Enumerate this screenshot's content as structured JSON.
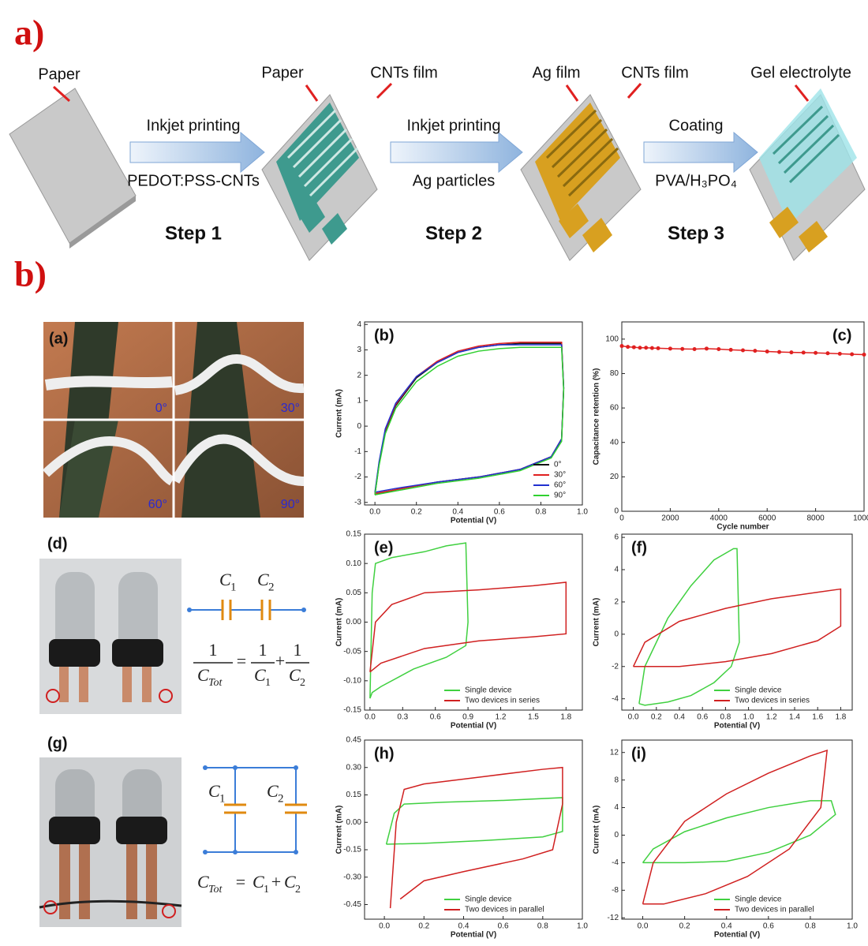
{
  "schematic": {
    "label": "a)",
    "paper_1": "Paper",
    "step1_top": "Inkjet printing",
    "step1_bottom": "PEDOT:PSS-CNTs",
    "step1": "Step 1",
    "paper_2": "Paper",
    "cnts_film_1": "CNTs film",
    "step2_top": "Inkjet printing",
    "step2_bottom": "Ag particles",
    "step2": "Step 2",
    "ag_film": "Ag film",
    "cnts_film_2": "CNTs film",
    "step3_top": "Coating",
    "step3_bottom": "PVA/H₃PO₄",
    "step3": "Step 3",
    "gel": "Gel electrolyte"
  },
  "part_b": {
    "label": "b)",
    "photo_a": {
      "tag": "(a)",
      "angles": [
        "0°",
        "30°",
        "60°",
        "90°"
      ]
    },
    "photo_d": {
      "tag": "(d)"
    },
    "series_circuit": {
      "c1": "C",
      "c1_sub": "1",
      "c2": "C",
      "c2_sub": "2",
      "one_a": "1",
      "ctot": "C",
      "ctot_sub": "Tot",
      "eq": "=",
      "one_b": "1",
      "d1": "C",
      "d1_sub": "1",
      "plus": "+",
      "one_c": "1",
      "d2": "C",
      "d2_sub": "2"
    },
    "photo_g": {
      "tag": "(g)"
    },
    "parallel_circuit": {
      "c1": "C",
      "c1_sub": "1",
      "c2": "C",
      "c2_sub": "2",
      "ctot": "C",
      "ctot_sub": "Tot",
      "eq": "=",
      "a": "C",
      "a_sub": "1",
      "plus": "+",
      "b": "C",
      "b_sub": "2"
    }
  },
  "chart_data": [
    {
      "type": "line",
      "tag": "(b)",
      "x_label": "Potential (V)",
      "y_label": "Current (mA)",
      "xlim": [
        -0.05,
        1.0
      ],
      "ylim": [
        -3.1,
        4.1
      ],
      "xticks": [
        {
          "value": 0,
          "label": "0.0"
        },
        {
          "value": 0.2,
          "label": "0.2"
        },
        {
          "value": 0.4,
          "label": "0.4"
        },
        {
          "value": 0.6,
          "label": "0.6"
        },
        {
          "value": 0.8,
          "label": "0.8"
        },
        {
          "value": 1,
          "label": "1.0"
        }
      ],
      "yticks": [
        -3,
        -2,
        -1,
        0,
        1,
        2,
        3,
        4
      ],
      "legend": "lower right",
      "series": [
        {
          "name": "0°",
          "color": "#111111",
          "x": [
            0,
            0.02,
            0.05,
            0.1,
            0.2,
            0.3,
            0.4,
            0.5,
            0.6,
            0.7,
            0.8,
            0.9,
            0.91,
            0.9,
            0.85,
            0.7,
            0.5,
            0.3,
            0.1,
            0
          ],
          "values": [
            -2.7,
            -1.5,
            -0.2,
            0.8,
            1.9,
            2.5,
            2.9,
            3.1,
            3.2,
            3.25,
            3.25,
            3.25,
            1.5,
            -0.5,
            -1.2,
            -1.7,
            -2.0,
            -2.2,
            -2.5,
            -2.7
          ]
        },
        {
          "name": "30°",
          "color": "#e02020",
          "x": [
            0,
            0.02,
            0.05,
            0.1,
            0.2,
            0.3,
            0.4,
            0.5,
            0.6,
            0.7,
            0.8,
            0.9,
            0.91,
            0.9,
            0.85,
            0.7,
            0.5,
            0.3,
            0.1,
            0
          ],
          "values": [
            -2.65,
            -1.45,
            -0.15,
            0.85,
            1.95,
            2.55,
            2.95,
            3.15,
            3.25,
            3.3,
            3.3,
            3.3,
            1.5,
            -0.5,
            -1.2,
            -1.7,
            -2.0,
            -2.2,
            -2.5,
            -2.65
          ]
        },
        {
          "name": "60°",
          "color": "#2030d0",
          "x": [
            0,
            0.02,
            0.05,
            0.1,
            0.2,
            0.3,
            0.4,
            0.5,
            0.6,
            0.7,
            0.8,
            0.9,
            0.91,
            0.9,
            0.85,
            0.7,
            0.5,
            0.3,
            0.1,
            0
          ],
          "values": [
            -2.6,
            -1.4,
            -0.1,
            0.9,
            1.95,
            2.5,
            2.9,
            3.1,
            3.2,
            3.2,
            3.2,
            3.2,
            1.5,
            -0.5,
            -1.2,
            -1.7,
            -2.0,
            -2.2,
            -2.45,
            -2.6
          ]
        },
        {
          "name": "90°",
          "color": "#30d030",
          "x": [
            0,
            0.02,
            0.05,
            0.1,
            0.2,
            0.3,
            0.4,
            0.5,
            0.6,
            0.7,
            0.8,
            0.9,
            0.91,
            0.9,
            0.85,
            0.7,
            0.5,
            0.3,
            0.1,
            0
          ],
          "values": [
            -2.7,
            -1.55,
            -0.3,
            0.7,
            1.75,
            2.35,
            2.75,
            2.95,
            3.05,
            3.1,
            3.1,
            3.1,
            1.4,
            -0.6,
            -1.25,
            -1.75,
            -2.05,
            -2.25,
            -2.55,
            -2.7
          ]
        }
      ]
    },
    {
      "type": "line",
      "tag": "(c)",
      "x_label": "Cycle number",
      "y_label": "Capacitance retention (%)",
      "xlim": [
        0,
        10000
      ],
      "ylim": [
        0,
        110
      ],
      "xticks": [
        0,
        2000,
        4000,
        6000,
        8000,
        10000
      ],
      "yticks": [
        0,
        20,
        40,
        60,
        80,
        100
      ],
      "markers": true,
      "series": [
        {
          "color": "#e02020",
          "x": [
            0,
            250,
            500,
            750,
            1000,
            1250,
            1500,
            2000,
            2500,
            3000,
            3500,
            4000,
            4500,
            5000,
            5500,
            6000,
            6500,
            7000,
            7500,
            8000,
            8500,
            9000,
            9500,
            10000
          ],
          "values": [
            96,
            95.5,
            95.3,
            95,
            95,
            94.8,
            94.7,
            94.5,
            94.3,
            94.2,
            94.5,
            94.2,
            93.8,
            93.5,
            93.2,
            92.8,
            92.5,
            92.3,
            92.2,
            92,
            91.8,
            91.5,
            91.2,
            91
          ]
        }
      ]
    },
    {
      "type": "line",
      "tag": "(e)",
      "x_label": "Potential (V)",
      "y_label": "Current (mA)",
      "xlim": [
        -0.05,
        1.95
      ],
      "ylim": [
        -0.15,
        0.15
      ],
      "xticks": [
        {
          "value": 0,
          "label": "0.0"
        },
        {
          "value": 0.3,
          "label": "0.3"
        },
        {
          "value": 0.6,
          "label": "0.6"
        },
        {
          "value": 0.9,
          "label": "0.9"
        },
        {
          "value": 1.2,
          "label": "1.2"
        },
        {
          "value": 1.5,
          "label": "1.5"
        },
        {
          "value": 1.8,
          "label": "1.8"
        }
      ],
      "yticks": [
        {
          "value": -0.15,
          "label": "-0.15"
        },
        {
          "value": -0.1,
          "label": "-0.10"
        },
        {
          "value": -0.05,
          "label": "-0.05"
        },
        {
          "value": 0,
          "label": "0.00"
        },
        {
          "value": 0.05,
          "label": "0.05"
        },
        {
          "value": 0.1,
          "label": "0.10"
        },
        {
          "value": 0.15,
          "label": "0.15"
        }
      ],
      "legend": "lower right",
      "series": [
        {
          "name": "Single device",
          "color": "#40d040",
          "x": [
            0,
            0.02,
            0.05,
            0.2,
            0.5,
            0.7,
            0.88,
            0.9,
            0.88,
            0.7,
            0.4,
            0.1,
            0.02,
            0
          ],
          "values": [
            -0.13,
            0.05,
            0.1,
            0.11,
            0.12,
            0.13,
            0.135,
            0,
            -0.04,
            -0.06,
            -0.08,
            -0.11,
            -0.12,
            -0.13
          ]
        },
        {
          "name": "Two devices in series",
          "color": "#d02020",
          "x": [
            0,
            0.05,
            0.2,
            0.5,
            1.0,
            1.5,
            1.8,
            1.8,
            1.5,
            1.0,
            0.5,
            0.1,
            0
          ],
          "values": [
            -0.085,
            0,
            0.03,
            0.05,
            0.055,
            0.062,
            0.068,
            -0.02,
            -0.025,
            -0.032,
            -0.045,
            -0.07,
            -0.085
          ]
        }
      ]
    },
    {
      "type": "line",
      "tag": "(f)",
      "x_label": "Potential (V)",
      "y_label": "Current (mA)",
      "xlim": [
        -0.1,
        1.9
      ],
      "ylim": [
        -4.7,
        6.2
      ],
      "xticks": [
        {
          "value": 0,
          "label": "0.0"
        },
        {
          "value": 0.2,
          "label": "0.2"
        },
        {
          "value": 0.4,
          "label": "0.4"
        },
        {
          "value": 0.6,
          "label": "0.6"
        },
        {
          "value": 0.8,
          "label": "0.8"
        },
        {
          "value": 1,
          "label": "1.0"
        },
        {
          "value": 1.2,
          "label": "1.2"
        },
        {
          "value": 1.4,
          "label": "1.4"
        },
        {
          "value": 1.6,
          "label": "1.6"
        },
        {
          "value": 1.8,
          "label": "1.8"
        }
      ],
      "yticks": [
        -4,
        -2,
        0,
        2,
        4,
        6
      ],
      "legend": "lower right",
      "series": [
        {
          "name": "Single device",
          "color": "#40d040",
          "x": [
            0.05,
            0.1,
            0.3,
            0.5,
            0.7,
            0.87,
            0.9,
            0.92,
            0.85,
            0.7,
            0.5,
            0.3,
            0.1,
            0.05
          ],
          "values": [
            -4.3,
            -2,
            1,
            3,
            4.6,
            5.3,
            5.3,
            -0.5,
            -2,
            -3,
            -3.8,
            -4.2,
            -4.4,
            -4.3
          ]
        },
        {
          "name": "Two devices in series",
          "color": "#d02020",
          "x": [
            0,
            0.1,
            0.4,
            0.8,
            1.2,
            1.6,
            1.8,
            1.8,
            1.6,
            1.2,
            0.8,
            0.4,
            0
          ],
          "values": [
            -2,
            -0.5,
            0.8,
            1.6,
            2.2,
            2.6,
            2.8,
            0.5,
            -0.4,
            -1.2,
            -1.7,
            -2,
            -2
          ]
        }
      ]
    },
    {
      "type": "line",
      "tag": "(h)",
      "x_label": "Potential (V)",
      "y_label": "Current (mA)",
      "xlim": [
        -0.1,
        1.0
      ],
      "ylim": [
        -0.53,
        0.45
      ],
      "xticks": [
        {
          "value": 0,
          "label": "0.0"
        },
        {
          "value": 0.2,
          "label": "0.2"
        },
        {
          "value": 0.4,
          "label": "0.4"
        },
        {
          "value": 0.6,
          "label": "0.6"
        },
        {
          "value": 0.8,
          "label": "0.8"
        },
        {
          "value": 1,
          "label": "1.0"
        }
      ],
      "yticks": [
        {
          "value": -0.45,
          "label": "-0.45"
        },
        {
          "value": -0.3,
          "label": "-0.30"
        },
        {
          "value": -0.15,
          "label": "-0.15"
        },
        {
          "value": 0,
          "label": "0.00"
        },
        {
          "value": 0.15,
          "label": "0.15"
        },
        {
          "value": 0.3,
          "label": "0.30"
        },
        {
          "value": 0.45,
          "label": "0.45"
        }
      ],
      "legend": "lower right",
      "series": [
        {
          "name": "Single device",
          "color": "#40d040",
          "x": [
            0.01,
            0.05,
            0.1,
            0.3,
            0.6,
            0.9,
            0.9,
            0.8,
            0.5,
            0.2,
            0.01
          ],
          "values": [
            -0.12,
            0.05,
            0.1,
            0.11,
            0.12,
            0.135,
            -0.05,
            -0.08,
            -0.1,
            -0.115,
            -0.12
          ]
        },
        {
          "name": "Two devices in parallel",
          "color": "#d02020",
          "x": [
            0.03,
            0.06,
            0.1,
            0.2,
            0.5,
            0.8,
            0.9,
            0.9,
            0.85,
            0.7,
            0.4,
            0.2,
            0.08
          ],
          "values": [
            -0.47,
            0,
            0.18,
            0.21,
            0.25,
            0.29,
            0.3,
            0.1,
            -0.15,
            -0.2,
            -0.27,
            -0.32,
            -0.42
          ]
        }
      ]
    },
    {
      "type": "line",
      "tag": "(i)",
      "x_label": "Potential (V)",
      "y_label": "Current (mA)",
      "xlim": [
        -0.1,
        1.0
      ],
      "ylim": [
        -12.2,
        13.8
      ],
      "xticks": [
        {
          "value": 0,
          "label": "0.0"
        },
        {
          "value": 0.2,
          "label": "0.2"
        },
        {
          "value": 0.4,
          "label": "0.4"
        },
        {
          "value": 0.6,
          "label": "0.6"
        },
        {
          "value": 0.8,
          "label": "0.8"
        },
        {
          "value": 1,
          "label": "1.0"
        }
      ],
      "yticks": [
        -12,
        -8,
        -4,
        0,
        4,
        8,
        12
      ],
      "legend": "lower right",
      "series": [
        {
          "name": "Single device",
          "color": "#40d040",
          "x": [
            0,
            0.05,
            0.2,
            0.4,
            0.6,
            0.8,
            0.9,
            0.92,
            0.8,
            0.6,
            0.4,
            0.2,
            0
          ],
          "values": [
            -4,
            -2,
            0.5,
            2.5,
            4,
            5,
            5,
            3,
            0,
            -2.5,
            -3.8,
            -4,
            -4
          ]
        },
        {
          "name": "Two devices in parallel",
          "color": "#d02020",
          "x": [
            0,
            0.05,
            0.2,
            0.4,
            0.6,
            0.8,
            0.88,
            0.85,
            0.7,
            0.5,
            0.3,
            0.1,
            0
          ],
          "values": [
            -10,
            -4,
            2,
            6,
            9,
            11.5,
            12.3,
            4,
            -2,
            -6,
            -8.5,
            -10,
            -10
          ]
        }
      ]
    }
  ]
}
